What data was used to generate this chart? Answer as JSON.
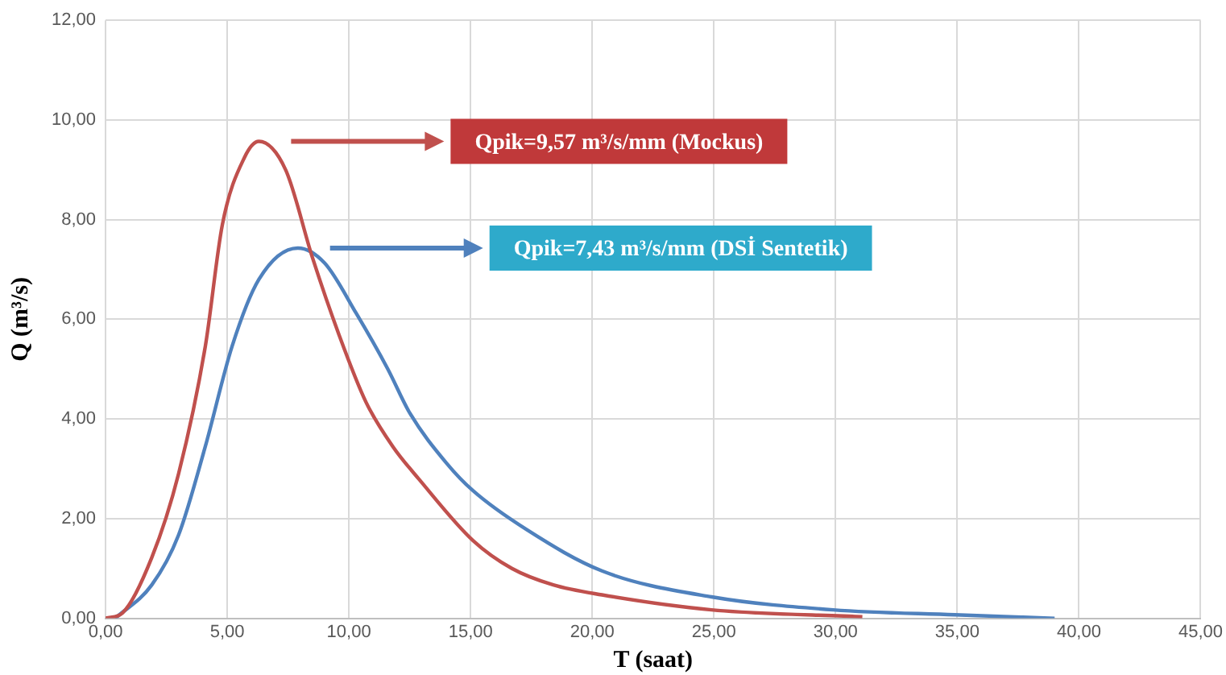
{
  "chart_data": {
    "type": "line",
    "xlabel": "T (saat)",
    "ylabel": "Q (m³/s)",
    "xlim": [
      0,
      45
    ],
    "ylim": [
      0,
      12
    ],
    "xticks": [
      {
        "value": 0,
        "label": "0,00"
      },
      {
        "value": 5,
        "label": "5,00"
      },
      {
        "value": 10,
        "label": "10,00"
      },
      {
        "value": 15,
        "label": "15,00"
      },
      {
        "value": 20,
        "label": "20,00"
      },
      {
        "value": 25,
        "label": "25,00"
      },
      {
        "value": 30,
        "label": "30,00"
      },
      {
        "value": 35,
        "label": "35,00"
      },
      {
        "value": 40,
        "label": "40,00"
      },
      {
        "value": 45,
        "label": "45,00"
      }
    ],
    "yticks": [
      {
        "value": 0,
        "label": "0,00"
      },
      {
        "value": 2,
        "label": "2,00"
      },
      {
        "value": 4,
        "label": "4,00"
      },
      {
        "value": 6,
        "label": "6,00"
      },
      {
        "value": 8,
        "label": "8,00"
      },
      {
        "value": 10,
        "label": "10,00"
      },
      {
        "value": 12,
        "label": "12,00"
      }
    ],
    "grid": true,
    "legend": false,
    "marker": "none",
    "line_style": "solid",
    "series": [
      {
        "color": "#c0504d",
        "x": [
          0,
          0.7,
          1.9,
          3.0,
          4.1,
          4.8,
          5.7,
          6.3,
          7.4,
          8.5,
          9.6,
          10.7,
          11.8,
          12.9,
          15.1,
          16.7,
          18.4,
          20.4,
          24.9,
          31.1
        ],
        "values": [
          0,
          0.11,
          1.22,
          2.9,
          5.46,
          7.9,
          9.24,
          9.57,
          9.0,
          7.24,
          5.68,
          4.34,
          3.45,
          2.78,
          1.56,
          1.0,
          0.67,
          0.47,
          0.17,
          0.03
        ]
      },
      {
        "color": "#4f81bd",
        "x": [
          0.4,
          1.9,
          3.0,
          4.1,
          5.2,
          6.3,
          7.9,
          9.0,
          10.3,
          11.6,
          12.5,
          14.0,
          15.1,
          17.3,
          20.4,
          24.9,
          29.9,
          34.9,
          39.0
        ],
        "values": [
          0,
          0.67,
          1.67,
          3.45,
          5.46,
          6.8,
          7.43,
          7.13,
          6.12,
          5.0,
          4.12,
          3.12,
          2.56,
          1.78,
          0.95,
          0.43,
          0.17,
          0.07,
          0
        ]
      }
    ],
    "annotations": [
      "Qpik=9,57 m³/s/mm (Mockus)",
      "Qpik=7,43 m³/s/mm (DSİ Sentetik)"
    ]
  }
}
